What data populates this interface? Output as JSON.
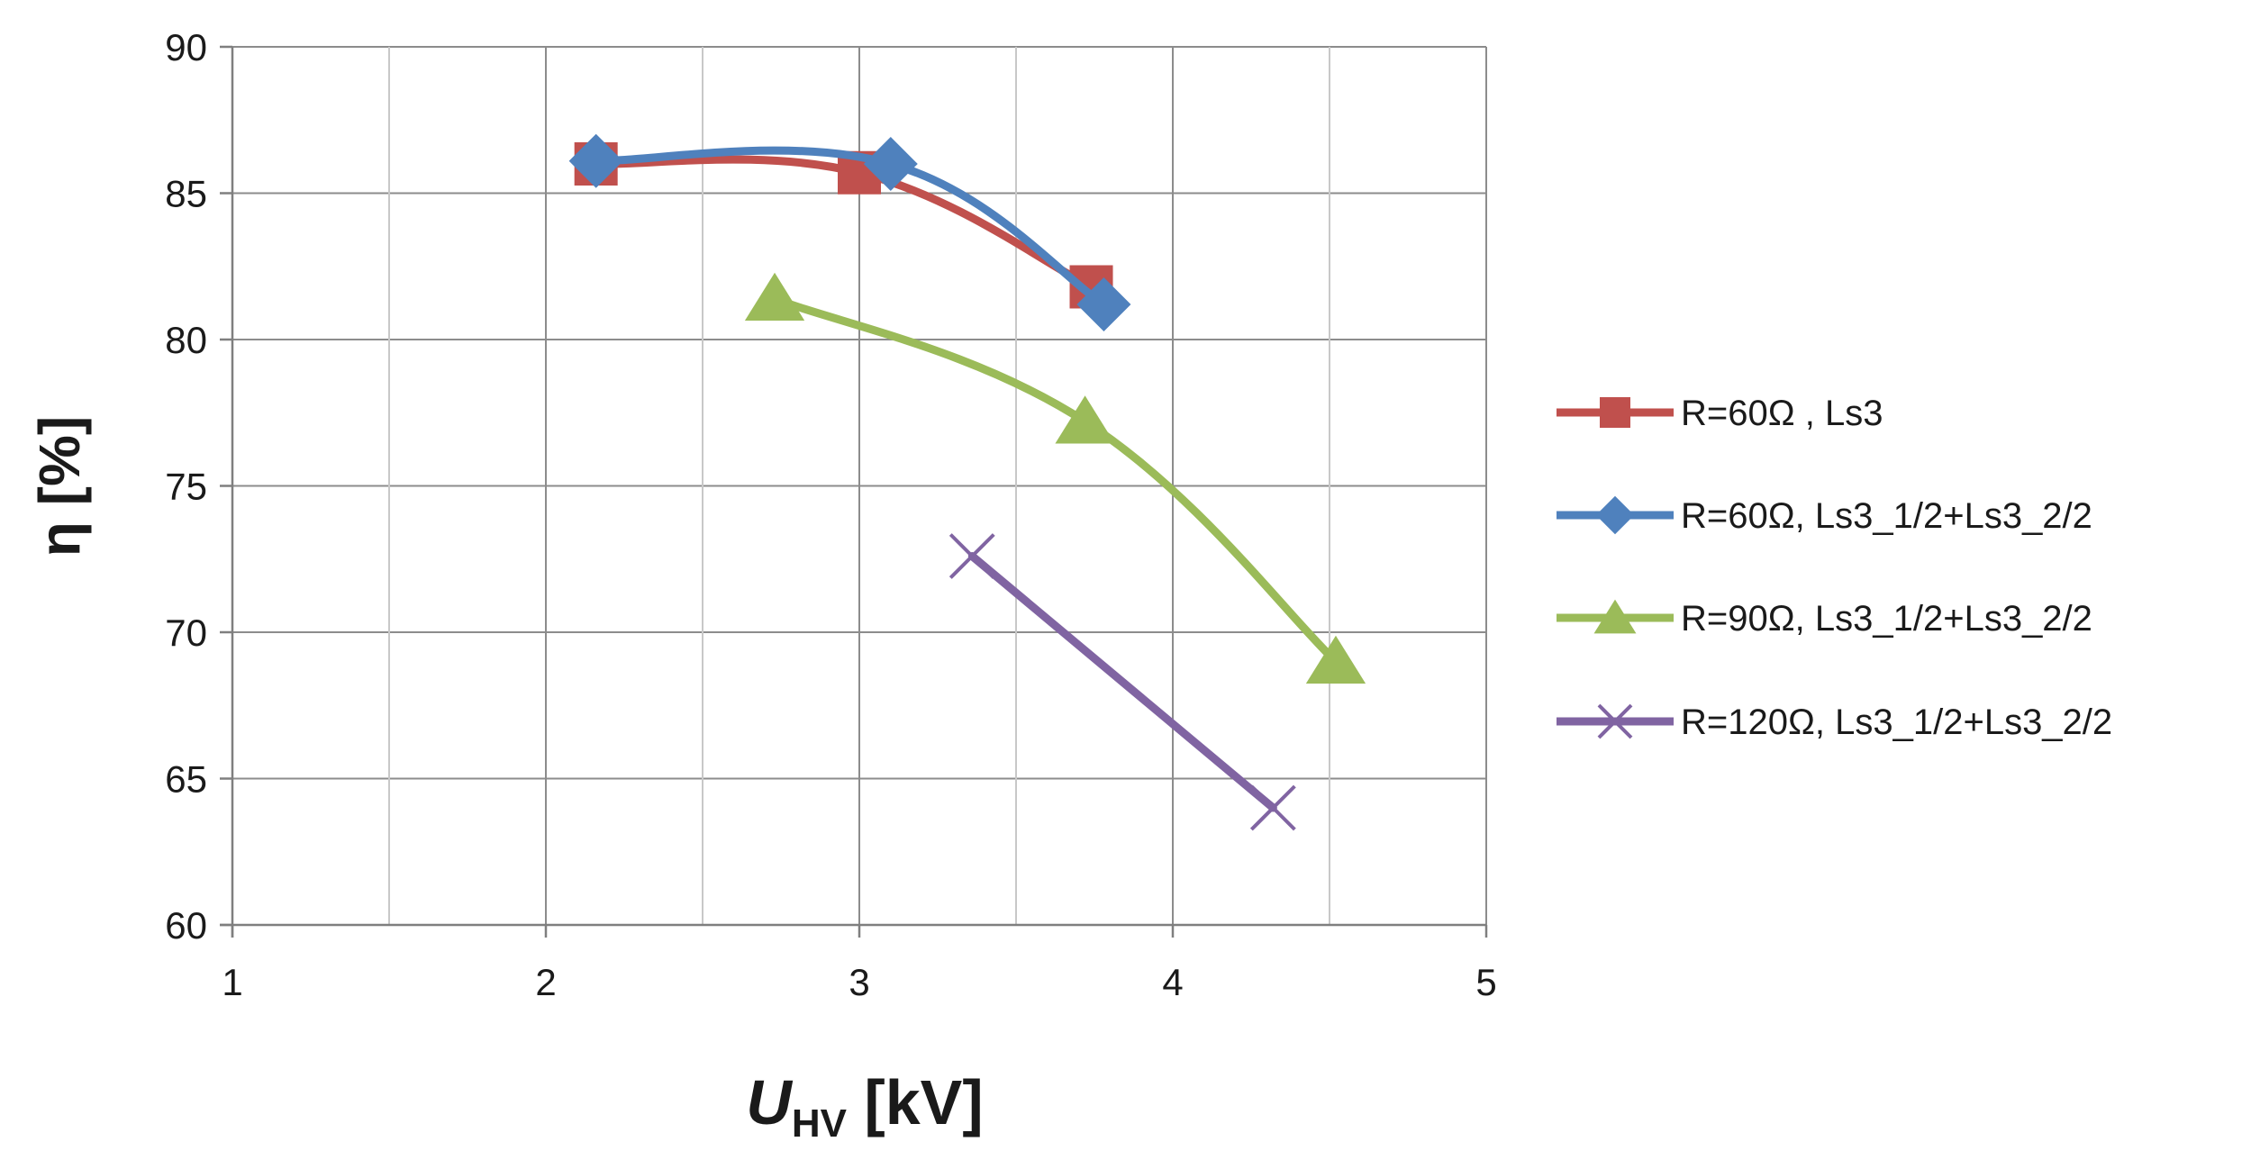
{
  "chart_data": {
    "type": "line",
    "title": "",
    "xlabel": {
      "main": "U",
      "sub": "HV",
      "rest": " [kV]"
    },
    "ylabel": "η [%]",
    "xlim": [
      1,
      5
    ],
    "ylim": [
      60,
      90
    ],
    "xticks": [
      1,
      2,
      3,
      4,
      5
    ],
    "yticks": [
      60,
      65,
      70,
      75,
      80,
      85,
      90
    ],
    "x_minor_grid": [
      1.5,
      2.5,
      3.5,
      4.5
    ],
    "grid": true,
    "legend_position": "right",
    "series": [
      {
        "name": "R=60Ω ,   Ls3",
        "color": "#C0504D",
        "marker": "square",
        "points": [
          [
            2.16,
            86.0
          ],
          [
            3.0,
            85.7
          ],
          [
            3.74,
            81.8
          ]
        ]
      },
      {
        "name": "R=60Ω,   Ls3_1/2+Ls3_2/2",
        "color": "#4F81BD",
        "marker": "diamond",
        "points": [
          [
            2.16,
            86.1
          ],
          [
            3.1,
            86.0
          ],
          [
            3.78,
            81.2
          ]
        ]
      },
      {
        "name": "R=90Ω,   Ls3_1/2+Ls3_2/2",
        "color": "#9BBB59",
        "marker": "triangle",
        "points": [
          [
            2.73,
            81.4
          ],
          [
            3.72,
            77.2
          ],
          [
            4.52,
            69.0
          ]
        ]
      },
      {
        "name": "R=120Ω, Ls3_1/2+Ls3_2/2",
        "color": "#8064A2",
        "marker": "x",
        "points": [
          [
            3.36,
            72.6
          ],
          [
            4.32,
            64.0
          ]
        ]
      }
    ]
  }
}
